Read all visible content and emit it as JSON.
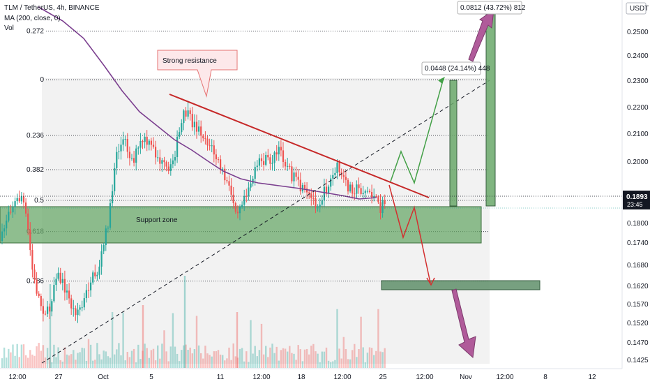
{
  "header": {
    "title": "TLM / TetherUS, 4h, BINANCE",
    "ma_label": "MA (200, close, 0)",
    "vol_label": "Vol",
    "currency": "USDT"
  },
  "chart_data": {
    "type": "candlestick",
    "y_axis": {
      "ticks": [
        "0.2500",
        "0.2400",
        "0.2300",
        "0.2200",
        "0.2100",
        "0.2000",
        "0.1800",
        "0.1740",
        "0.1680",
        "0.1620",
        "0.1570",
        "0.1520",
        "0.1470",
        "0.1425"
      ],
      "last_price": "0.1893",
      "countdown": "23:45"
    },
    "x_axis": {
      "ticks": [
        "12:00",
        "27",
        "Oct",
        "5",
        "11",
        "12:00",
        "18",
        "12:00",
        "25",
        "12:00",
        "Nov",
        "12:00",
        "8",
        "12"
      ]
    },
    "fib_levels": [
      {
        "label": "0.272",
        "value": 0.2545
      },
      {
        "label": "0",
        "value": 0.2305
      },
      {
        "label": "0.236",
        "value": 0.2095
      },
      {
        "label": "0.382",
        "value": 0.1975
      },
      {
        "label": "0.5",
        "value": 0.1875
      },
      {
        "label": "0.618",
        "value": 0.1775
      },
      {
        "label": "0.786",
        "value": 0.1635
      }
    ],
    "annotations": {
      "resistance_label": "Strong resistance",
      "support_label": "Support zone",
      "measure_small": "0.0448 (24.14%) 448",
      "measure_large": "0.0812 (43.72%) 812"
    },
    "colors": {
      "up": "#26a69a",
      "down": "#ef5350",
      "ma": "#7b3f8f",
      "resistance": "#c62828",
      "support_zone": "#6aa86a",
      "target_zone": "#5f8f6a",
      "projection_up": "#43a047",
      "projection_down": "#d32f2f",
      "big_arrow": "#b05b9a",
      "last_price_bg": "#131722"
    }
  }
}
